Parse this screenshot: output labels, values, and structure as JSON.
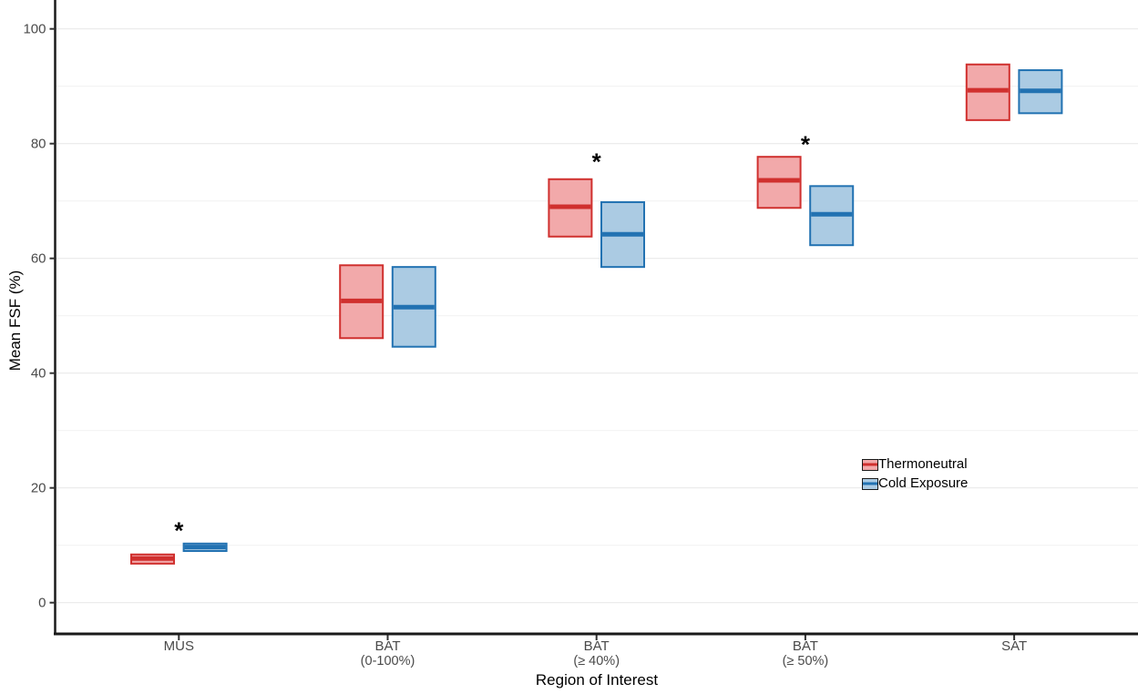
{
  "chart_data": {
    "type": "crossbar",
    "title": "",
    "xlabel": "Region of Interest",
    "ylabel": "Mean FSF (%)",
    "ylim": [
      -5.4,
      105
    ],
    "yticks": [
      0,
      20,
      40,
      60,
      80,
      100
    ],
    "yticks_minor": [
      10,
      30,
      50,
      70,
      90
    ],
    "grid": "major and minor horizontal, very light gray",
    "legend_position": "inside right, no frame",
    "categories": [
      {
        "label": "MUS",
        "sub": ""
      },
      {
        "label": "BAT",
        "sub": "(0-100%)"
      },
      {
        "label": "BAT",
        "sub": "(≥ 40%)"
      },
      {
        "label": "BAT",
        "sub": "(≥ 50%)"
      },
      {
        "label": "SAT",
        "sub": ""
      }
    ],
    "series": [
      {
        "name": "Thermoneutral",
        "line_color": "#d0302e",
        "fill_color": "#f2a9aa",
        "boxes": [
          {
            "lower": 6.8,
            "mid": 7.7,
            "upper": 8.4
          },
          {
            "lower": 46.1,
            "mid": 52.6,
            "upper": 58.8
          },
          {
            "lower": 63.8,
            "mid": 69.0,
            "upper": 73.8
          },
          {
            "lower": 68.8,
            "mid": 73.6,
            "upper": 77.7
          },
          {
            "lower": 84.1,
            "mid": 89.3,
            "upper": 93.8
          }
        ]
      },
      {
        "name": "Cold Exposure",
        "line_color": "#2272b2",
        "fill_color": "#abcbe3",
        "boxes": [
          {
            "lower": 9.0,
            "mid": 9.7,
            "upper": 10.3
          },
          {
            "lower": 44.6,
            "mid": 51.5,
            "upper": 58.5
          },
          {
            "lower": 58.5,
            "mid": 64.2,
            "upper": 69.8
          },
          {
            "lower": 62.3,
            "mid": 67.7,
            "upper": 72.6
          },
          {
            "lower": 85.3,
            "mid": 89.2,
            "upper": 92.8
          }
        ]
      }
    ],
    "significance": [
      {
        "category_index": 0,
        "label": "*",
        "y": 13.7
      },
      {
        "category_index": 2,
        "label": "*",
        "y": 78.0
      },
      {
        "category_index": 3,
        "label": "*",
        "y": 81.0
      }
    ],
    "text_colors": {
      "tick_labels": "#4a4a4a",
      "axis_titles": "#000000",
      "significance": "#000000"
    },
    "axis_color": "#1a1a1a",
    "grid_major_color": "#e9e9e9",
    "grid_minor_color": "#f3f3f3"
  }
}
